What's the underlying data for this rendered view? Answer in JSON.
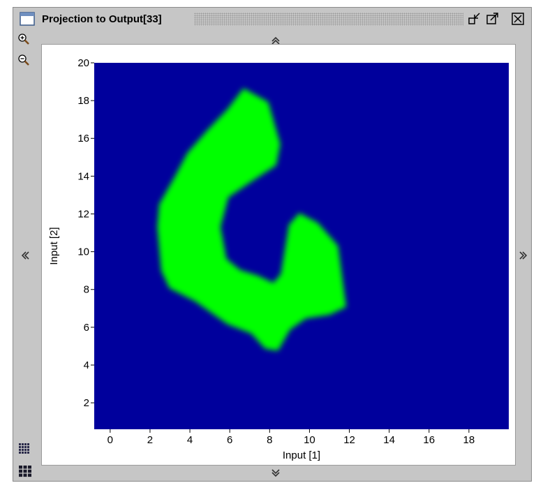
{
  "window": {
    "title": "Projection to Output[33]",
    "icons": {
      "window": "window-icon",
      "restore": "restore-icon",
      "maximize": "maximize-icon",
      "close": "close-icon",
      "zoom_in": "zoom-in-icon",
      "zoom_out": "zoom-out-icon",
      "scroll_up": "chevron-up-icon",
      "scroll_down": "chevron-down-icon",
      "scroll_left": "chevron-left-icon",
      "scroll_right": "chevron-right-icon",
      "grid_small": "grid-small-icon",
      "grid_large": "grid-large-icon"
    }
  },
  "colors": {
    "background": "#00009c",
    "shape": "#00ff00",
    "frame": "#c6c6c6"
  },
  "chart_data": {
    "type": "heatmap",
    "title": "",
    "xlabel": "Input [1]",
    "ylabel": "Input [2]",
    "xlim": [
      -0.8,
      20
    ],
    "ylim": [
      0.6,
      20
    ],
    "xticks": [
      0,
      2,
      4,
      6,
      8,
      10,
      12,
      14,
      16,
      18
    ],
    "yticks": [
      2,
      4,
      6,
      8,
      10,
      12,
      14,
      16,
      18,
      20
    ],
    "grid": false,
    "background_value": 0,
    "region_value": 1,
    "region_outline": [
      [
        6.7,
        18.6
      ],
      [
        7.9,
        17.9
      ],
      [
        8.5,
        15.7
      ],
      [
        8.3,
        14.6
      ],
      [
        7.0,
        13.7
      ],
      [
        5.9,
        12.9
      ],
      [
        5.5,
        11.3
      ],
      [
        5.8,
        9.6
      ],
      [
        6.5,
        9.0
      ],
      [
        7.4,
        8.7
      ],
      [
        8.2,
        8.3
      ],
      [
        8.6,
        8.8
      ],
      [
        9.0,
        11.4
      ],
      [
        9.5,
        12.0
      ],
      [
        10.4,
        11.5
      ],
      [
        11.4,
        10.3
      ],
      [
        11.8,
        7.1
      ],
      [
        11.0,
        6.7
      ],
      [
        9.8,
        6.5
      ],
      [
        9.0,
        5.9
      ],
      [
        8.4,
        4.8
      ],
      [
        7.8,
        4.9
      ],
      [
        7.1,
        5.7
      ],
      [
        5.9,
        6.2
      ],
      [
        4.3,
        7.4
      ],
      [
        3.0,
        8.1
      ],
      [
        2.6,
        9.0
      ],
      [
        2.4,
        11.3
      ],
      [
        2.5,
        12.5
      ],
      [
        3.3,
        14.0
      ],
      [
        3.9,
        15.2
      ],
      [
        4.9,
        16.4
      ],
      [
        5.9,
        17.5
      ]
    ]
  }
}
